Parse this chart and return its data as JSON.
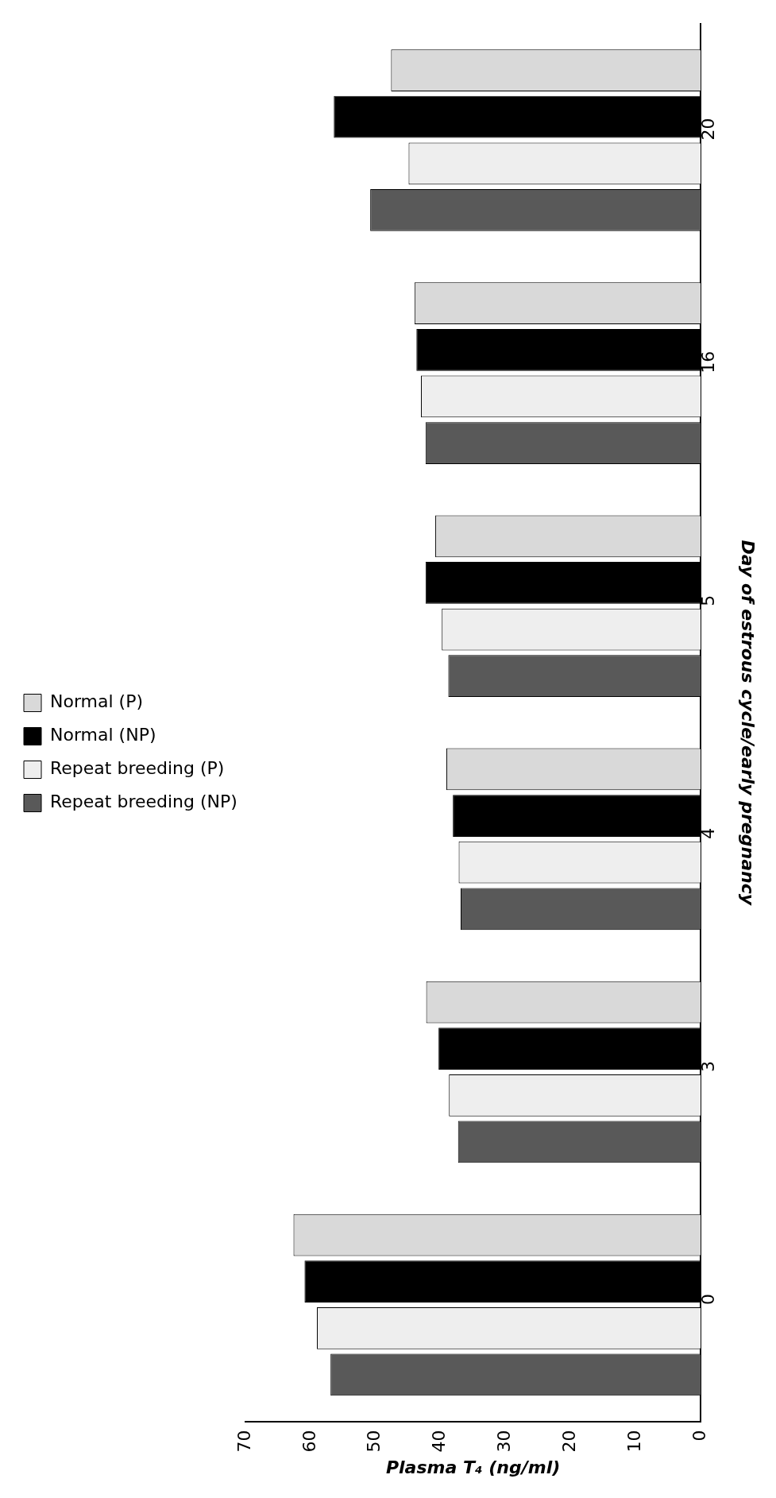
{
  "chart_data": {
    "type": "bar",
    "orientation": "horizontal",
    "xlabel": "Plasma T₄ (ng/ml)",
    "ylabel": "Day of estrous cycle/early pregnancy",
    "categories": [
      "20",
      "16",
      "5",
      "4",
      "3",
      "0"
    ],
    "series": [
      {
        "name": "Normal (P)",
        "color": "#d9d9d9",
        "values": [
          47.6,
          44.0,
          40.8,
          39.1,
          42.2,
          62.6
        ]
      },
      {
        "name": "Normal (NP)",
        "color": "#000000",
        "values": [
          56.4,
          43.7,
          42.3,
          38.1,
          40.3,
          60.9
        ]
      },
      {
        "name": "Repeat breeding (P)",
        "color": "#eeeeee",
        "values": [
          44.9,
          43.0,
          39.8,
          37.2,
          38.7,
          59.0
        ]
      },
      {
        "name": "Repeat breeding (NP)",
        "color": "#595959",
        "values": [
          50.8,
          42.3,
          38.8,
          36.9,
          37.3,
          56.9
        ]
      }
    ],
    "xlim": [
      70,
      0
    ],
    "xticks": [
      0,
      10,
      20,
      30,
      40,
      50,
      60,
      70
    ],
    "grid": false,
    "legend": "left"
  }
}
